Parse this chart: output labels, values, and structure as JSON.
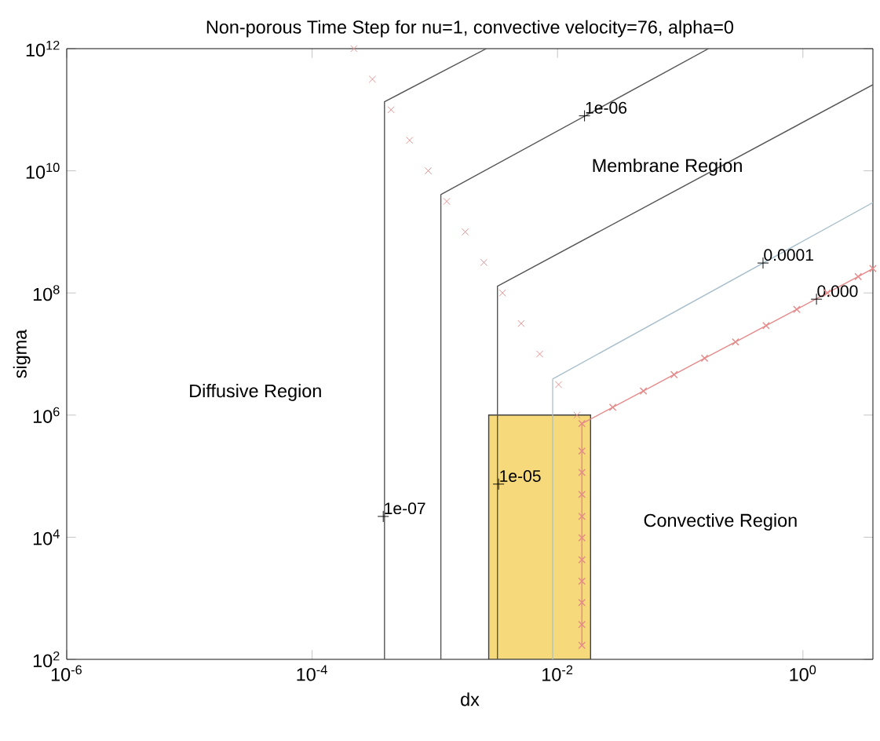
{
  "chart_data": {
    "type": "line",
    "title": "Non-porous Time Step for nu=1, convective velocity=76, alpha=0",
    "xlabel": "dx",
    "ylabel": "sigma",
    "log": "xy",
    "xlim": [
      1e-06,
      3.72
    ],
    "ylim": [
      100,
      1000000000000
    ],
    "xticks": [
      {
        "value": 1e-06,
        "label": "10$^{-6}$"
      },
      {
        "value": 0.0001,
        "label": "10$^{-4}$"
      },
      {
        "value": 0.01,
        "label": "10$^{-2}$"
      },
      {
        "value": 1,
        "label": "10$^{0}$"
      }
    ],
    "yticks": [
      {
        "value": 100,
        "label": "10$^{2}$"
      },
      {
        "value": 10000,
        "label": "10$^{4}$"
      },
      {
        "value": 1000000,
        "label": "10$^{6}$"
      },
      {
        "value": 100000000,
        "label": "10$^{8}$"
      },
      {
        "value": 10000000000,
        "label": "10$^{10}$"
      },
      {
        "value": 1000000000000,
        "label": "10$^{12}$"
      }
    ],
    "series": [
      {
        "type": "area",
        "color": "#f6d97a",
        "x": [
          0.00275,
          0.0186
        ],
        "values": [
          1000000,
          1000000
        ]
      },
      {
        "color": "#555555",
        "x": [
          0.000389,
          0.000389,
          0.00263
        ],
        "values": [
          100,
          135000000000,
          1000000000000
        ]
      },
      {
        "color": "#555555",
        "x": [
          0.00112,
          0.00112,
          0.17
        ],
        "values": [
          100,
          4070000000,
          1000000000000
        ]
      },
      {
        "color": "#555555",
        "x": [
          0.00324,
          0.00324,
          3.72
        ],
        "values": [
          100,
          129000000,
          257000000000
        ]
      },
      {
        "color": "#a9bfcc",
        "x": [
          0.00912,
          0.00912,
          3.72
        ],
        "values": [
          100,
          3890000,
          3020000000
        ]
      },
      {
        "color": "#e58a8a",
        "marker": "cross",
        "x": [
          0.0158,
          0.0158,
          0.0158,
          0.0158,
          0.0158,
          0.0158,
          0.0158,
          0.0158,
          0.0158,
          0.0158,
          0.0158,
          0.0282,
          0.0501,
          0.0891,
          0.158,
          0.282,
          0.501,
          0.891,
          1.58,
          2.82,
          3.72
        ],
        "values": [
          170,
          372,
          851,
          1910,
          4270,
          9770,
          21900,
          50100,
          115000,
          257000,
          724000,
          1340000,
          2480000,
          4600000,
          8510000,
          15800000,
          29200000,
          54000000,
          100000000,
          185000000,
          251000000
        ]
      },
      {
        "type": "scatter",
        "color": "#e58a8a",
        "marker": "cross",
        "x": [
          0.000219,
          0.00031,
          0.00044,
          0.000623,
          0.000883,
          0.00125,
          0.00177,
          0.00251,
          0.00356,
          0.00505,
          0.00716,
          0.0102,
          0.0144
        ],
        "values": [
          1000000000000,
          316000000000,
          100000000000,
          31600000000,
          10000000000,
          3160000000,
          1000000000,
          316000000,
          100000000,
          31600000,
          10000000,
          3160000,
          1000000
        ]
      }
    ],
    "annotations": [
      {
        "text": "1e-07",
        "x": 0.00038,
        "y": 21900
      },
      {
        "text": "1e-06",
        "x": 0.0166,
        "y": 79400000000
      },
      {
        "text": "1e-05",
        "x": 0.00331,
        "y": 74100
      },
      {
        "text": "0.0001",
        "x": 0.473,
        "y": 309000000
      },
      {
        "text": "0.000",
        "x": 1.29,
        "y": 79000000
      },
      "Diffusive Region",
      "Membrane Region",
      "Convective Region"
    ]
  }
}
